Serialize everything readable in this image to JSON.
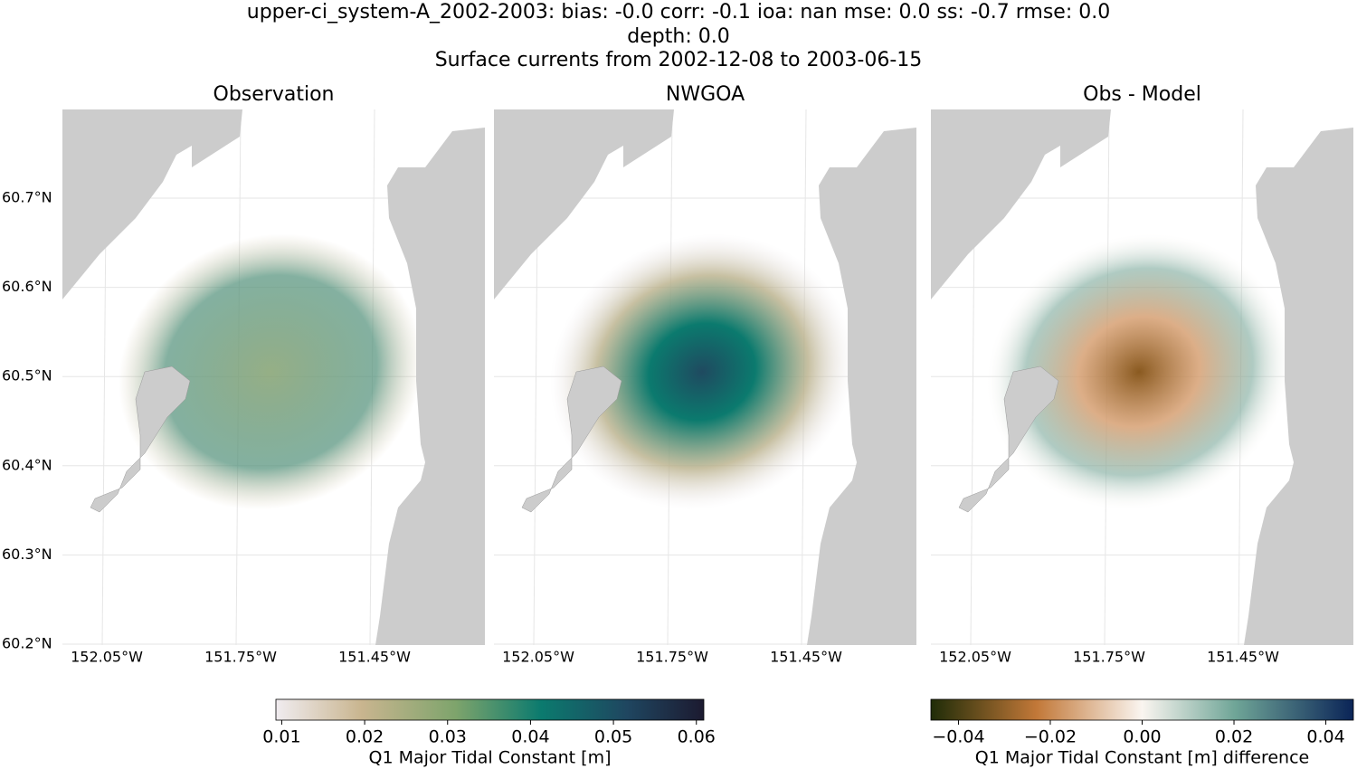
{
  "title": {
    "line1": "upper-ci_system-A_2002-2003: bias: -0.0  corr: -0.1  ioa: nan  mse: 0.0  ss: -0.7  rmse: 0.0",
    "line2": "depth: 0.0",
    "line3": "Surface currents from 2002-12-08 to 2003-06-15"
  },
  "panels": [
    {
      "title": "Observation"
    },
    {
      "title": "NWGOA"
    },
    {
      "title": "Obs - Model"
    }
  ],
  "lat_labels": [
    "60.7°N",
    "60.6°N",
    "60.5°N",
    "60.4°N",
    "60.3°N",
    "60.2°N"
  ],
  "lon_labels": [
    "152.05°W",
    "151.75°W",
    "151.45°W"
  ],
  "colorbars": [
    {
      "label": "Q1 Major Tidal Constant [m]",
      "lim": [
        0.0093,
        0.0609
      ],
      "ticks": [
        0.01,
        0.02,
        0.03,
        0.04,
        0.05,
        0.06
      ]
    },
    {
      "label": "Q1 Major Tidal Constant [m] difference",
      "lim": [
        -0.046,
        0.046
      ],
      "ticks": [
        {
          "value": -0.04,
          "label": "−0.04"
        },
        {
          "value": -0.02,
          "label": "−0.02"
        },
        {
          "value": 0,
          "label": "0.00"
        },
        {
          "value": 0.02,
          "label": "0.02"
        },
        {
          "value": 0.04,
          "label": "0.04"
        }
      ]
    }
  ]
}
